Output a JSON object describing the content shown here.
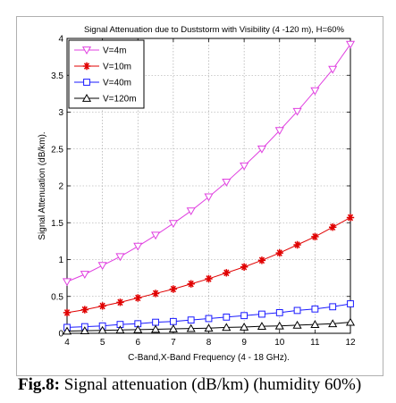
{
  "chart_data": {
    "type": "line",
    "title": "Signal Attenuation due to Duststorm with Visibility (4 -120 m), H=60%",
    "xlabel": "C-Band,X-Band Frequency (4 - 18 GHz).",
    "ylabel": "Signal Attenuation (dB/km).",
    "xlim": [
      4,
      12
    ],
    "ylim": [
      0,
      4
    ],
    "xticks": [
      4,
      5,
      6,
      7,
      8,
      9,
      10,
      11,
      12
    ],
    "yticks": [
      0,
      0.5,
      1,
      1.5,
      2,
      2.5,
      3,
      3.5,
      4
    ],
    "ytick_labels": [
      "0",
      "0.5",
      "1",
      "1.5",
      "2",
      "2.5",
      "3",
      "3.5",
      "4"
    ],
    "grid": true,
    "legend_position": "top-left",
    "x": [
      4,
      4.5,
      5,
      5.5,
      6,
      6.5,
      7,
      7.5,
      8,
      8.5,
      9,
      9.5,
      10,
      10.5,
      11,
      11.5,
      12
    ],
    "series": [
      {
        "name": "V=4m",
        "color": "#e040e0",
        "marker": "triangle-down",
        "values": [
          0.7,
          0.8,
          0.92,
          1.04,
          1.18,
          1.33,
          1.49,
          1.66,
          1.85,
          2.05,
          2.27,
          2.5,
          2.75,
          3.01,
          3.29,
          3.58,
          3.92
        ]
      },
      {
        "name": "V=10m",
        "color": "#e00000",
        "marker": "star",
        "values": [
          0.28,
          0.32,
          0.37,
          0.42,
          0.48,
          0.54,
          0.6,
          0.67,
          0.74,
          0.82,
          0.9,
          0.99,
          1.09,
          1.2,
          1.31,
          1.44,
          1.57
        ]
      },
      {
        "name": "V=40m",
        "color": "#1a1aff",
        "marker": "square",
        "values": [
          0.08,
          0.09,
          0.1,
          0.12,
          0.13,
          0.15,
          0.16,
          0.18,
          0.2,
          0.22,
          0.24,
          0.26,
          0.28,
          0.31,
          0.33,
          0.36,
          0.4
        ]
      },
      {
        "name": "V=120m",
        "color": "#000000",
        "marker": "triangle-up",
        "values": [
          0.03,
          0.035,
          0.04,
          0.045,
          0.05,
          0.055,
          0.06,
          0.065,
          0.07,
          0.08,
          0.085,
          0.095,
          0.1,
          0.11,
          0.12,
          0.13,
          0.15
        ]
      }
    ]
  },
  "caption": {
    "label": "Fig.8:",
    "text": " Signal attenuation (dB/km) (humidity 60%)"
  }
}
